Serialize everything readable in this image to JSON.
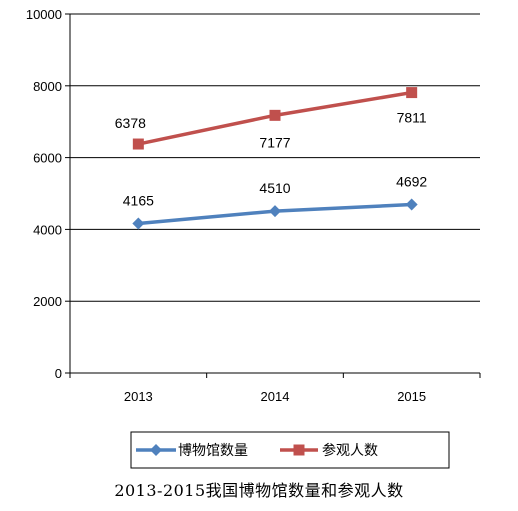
{
  "chart_data": {
    "type": "line",
    "categories": [
      "2013",
      "2014",
      "2015"
    ],
    "series": [
      {
        "name": "博物馆数量",
        "values": [
          4165,
          4510,
          4692
        ],
        "color": "#4F81BD",
        "marker": "diamond"
      },
      {
        "name": "参观人数",
        "values": [
          6378,
          7177,
          7811
        ],
        "color": "#C0504D",
        "marker": "square"
      }
    ],
    "ylim": [
      0,
      10000
    ],
    "yticks": [
      "0",
      "2000",
      "4000",
      "6000",
      "8000",
      "10000"
    ],
    "grid": true,
    "legend_position": "bottom",
    "title": "",
    "xlabel": "",
    "ylabel": ""
  },
  "caption": "2013-2015我国博物馆数量和参观人数"
}
